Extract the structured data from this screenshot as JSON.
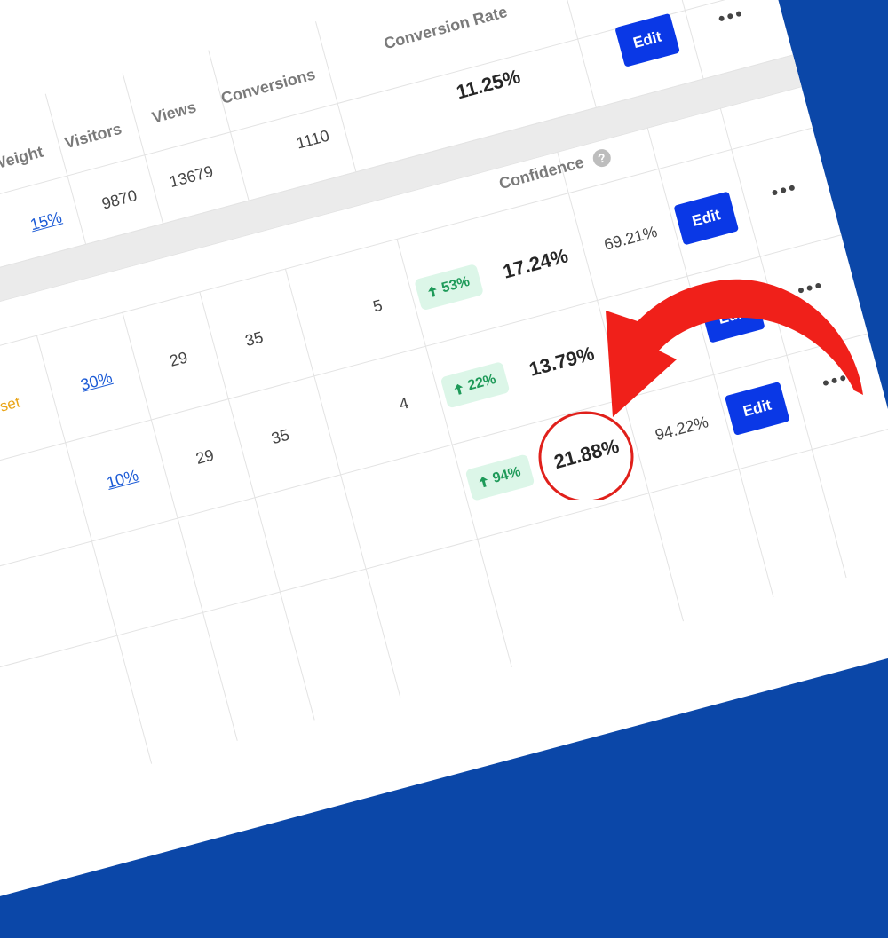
{
  "top_table": {
    "headers": {
      "weight": "Weight",
      "visitors": "Visitors",
      "views": "Views",
      "conversions": "Conversions",
      "conversion_rate": "Conversion Rate"
    },
    "row": {
      "weight": "15%",
      "visitors": "9870",
      "views": "13679",
      "conversions": "1110",
      "conversion_rate": "11.25%",
      "action": "Edit"
    }
  },
  "bottom_table": {
    "headers": {
      "confidence": "Confidence",
      "help": "?"
    },
    "rows": [
      {
        "status": "l set",
        "weight": "30%",
        "visitors": "29",
        "views": "35",
        "conversions": "5",
        "improvement": "53%",
        "conversion_rate": "17.24%",
        "confidence": "69.21%",
        "action": "Edit"
      },
      {
        "weight": "10%",
        "visitors": "29",
        "views": "35",
        "conversions": "4",
        "improvement": "22%",
        "conversion_rate": "13.79%",
        "action": "Edit"
      },
      {
        "improvement": "94%",
        "conversion_rate": "21.88%",
        "confidence": "94.22%",
        "action": "Edit"
      }
    ]
  }
}
